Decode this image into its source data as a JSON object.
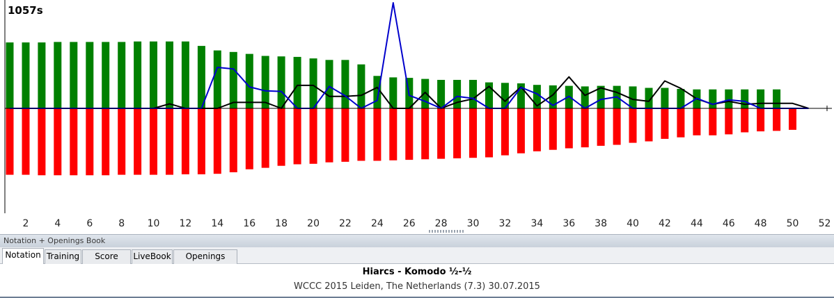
{
  "window": {
    "panel_title": "Notation + Openings Book"
  },
  "tabs": [
    {
      "label": "Notation",
      "active": true
    },
    {
      "label": "Training",
      "active": false
    },
    {
      "label": "Score sheet",
      "active": false
    },
    {
      "label": "LiveBook",
      "active": false
    },
    {
      "label": "Openings Book",
      "active": false
    }
  ],
  "game": {
    "title": "Hiarcs - Komodo  ½-½",
    "subtitle": "WCCC 2015 Leiden, The Netherlands (7.3) 30.07.2015"
  },
  "chart_data": {
    "type": "bar",
    "peak_label": "1057s",
    "x_ticks": [
      "2",
      "4",
      "6",
      "8",
      "10",
      "12",
      "14",
      "16",
      "18",
      "20",
      "22",
      "24",
      "26",
      "28",
      "30",
      "32",
      "34",
      "36",
      "38",
      "40",
      "42",
      "44",
      "46",
      "48",
      "50",
      "52"
    ],
    "ylim": [
      -690,
      1057
    ],
    "colors": {
      "white_clock": "#008000",
      "black_clock": "#ff0000",
      "move_time_a": "#0000cc",
      "move_time_b": "#000000"
    },
    "series": [
      {
        "values": [
          660,
          660,
          660,
          665,
          665,
          665,
          665,
          665,
          670,
          670,
          670,
          670,
          625,
          580,
          565,
          545,
          525,
          520,
          515,
          500,
          485,
          485,
          440,
          325,
          310,
          305,
          295,
          285,
          285,
          285,
          260,
          255,
          250,
          235,
          230,
          225,
          220,
          225,
          225,
          220,
          205,
          205,
          195,
          190,
          190,
          190,
          190,
          190,
          190
        ]
      },
      {
        "values": [
          -665,
          -665,
          -670,
          -670,
          -670,
          -670,
          -670,
          -665,
          -665,
          -665,
          -665,
          -660,
          -660,
          -655,
          -640,
          -610,
          -595,
          -575,
          -560,
          -555,
          -540,
          -535,
          -525,
          -525,
          -520,
          -515,
          -510,
          -505,
          -500,
          -495,
          -490,
          -470,
          -450,
          -430,
          -415,
          -400,
          -390,
          -375,
          -365,
          -345,
          -330,
          -305,
          -290,
          -270,
          -270,
          -260,
          -240,
          -230,
          -225,
          -215
        ]
      },
      {
        "x": [
          1,
          2,
          3,
          4,
          5,
          6,
          7,
          8,
          9,
          10,
          11,
          12,
          13,
          14,
          15,
          16,
          17,
          18,
          19,
          20,
          21,
          22,
          23,
          24,
          25,
          26,
          27,
          28,
          29,
          30,
          31,
          32,
          33,
          34,
          35,
          36,
          37,
          38,
          39,
          40,
          41,
          42,
          43,
          44,
          45,
          46,
          47,
          48,
          49,
          50,
          51
        ],
        "values": [
          0,
          0,
          0,
          0,
          0,
          0,
          0,
          0,
          0,
          0,
          0,
          0,
          0,
          410,
          395,
          215,
          175,
          170,
          0,
          0,
          220,
          125,
          0,
          80,
          1057,
          130,
          70,
          0,
          120,
          100,
          0,
          0,
          210,
          145,
          30,
          120,
          0,
          90,
          115,
          0,
          0,
          0,
          0,
          100,
          40,
          85,
          70,
          0,
          0,
          0,
          0
        ]
      },
      {
        "x": [
          1,
          2,
          3,
          4,
          5,
          6,
          7,
          8,
          9,
          10,
          11,
          12,
          13,
          14,
          15,
          16,
          17,
          18,
          19,
          20,
          21,
          22,
          23,
          24,
          25,
          26,
          27,
          28,
          29,
          30,
          31,
          32,
          33,
          34,
          35,
          36,
          37,
          38,
          39,
          40,
          41,
          42,
          43,
          44,
          45,
          46,
          47,
          48,
          49,
          50,
          51
        ],
        "values": [
          0,
          0,
          0,
          0,
          0,
          0,
          0,
          0,
          0,
          0,
          45,
          0,
          0,
          0,
          60,
          60,
          60,
          0,
          230,
          230,
          120,
          120,
          130,
          210,
          0,
          0,
          160,
          0,
          60,
          95,
          220,
          70,
          215,
          25,
          135,
          315,
          130,
          205,
          160,
          90,
          70,
          275,
          200,
          95,
          40,
          70,
          40,
          50,
          50,
          50,
          0
        ]
      }
    ]
  }
}
